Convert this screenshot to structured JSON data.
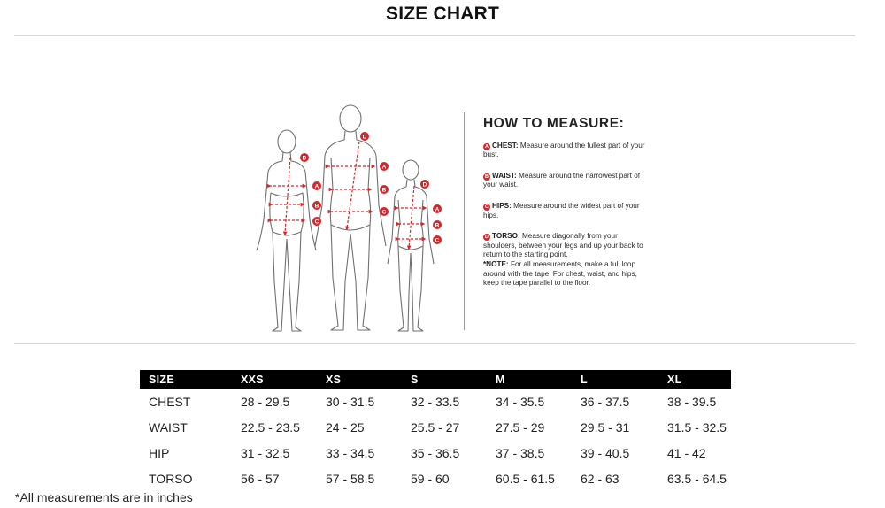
{
  "header": {
    "title": "SIZE CHART"
  },
  "how_to_measure": {
    "title": "HOW TO MEASURE:",
    "items": [
      {
        "badge": "A",
        "term": "CHEST:",
        "text": "Measure around the fullest part of your bust."
      },
      {
        "badge": "B",
        "term": "WAIST:",
        "text": "Measure around the narrowest part of your waist."
      },
      {
        "badge": "C",
        "term": "HIPS:",
        "text": "Measure around the widest part of your hips."
      },
      {
        "badge": "D",
        "term": "TORSO:",
        "text": "Measure diagonally from your shoulders, between your legs and up your back to return to the starting point."
      }
    ],
    "note": {
      "term": "*NOTE:",
      "text": "For all measurements, make a full loop around with the tape. For chest, waist, and hips, keep the tape parallel to the floor."
    }
  },
  "figure_labels": {
    "a": "A",
    "b": "B",
    "c": "C",
    "d": "D"
  },
  "table": {
    "headers": [
      "SIZE",
      "XXS",
      "XS",
      "S",
      "M",
      "L",
      "XL"
    ],
    "rows": [
      [
        "CHEST",
        "28 - 29.5",
        "30 - 31.5",
        "32 - 33.5",
        "34 - 35.5",
        "36 - 37.5",
        "38 - 39.5"
      ],
      [
        "WAIST",
        "22.5 - 23.5",
        "24 - 25",
        "25.5 - 27",
        "27.5 - 29",
        "29.5 - 31",
        "31.5 - 32.5"
      ],
      [
        "HIP",
        "31 - 32.5",
        "33 - 34.5",
        "35 - 36.5",
        "37 - 38.5",
        "39 - 40.5",
        "41 - 42"
      ],
      [
        "TORSO",
        "56 - 57",
        "57 - 58.5",
        "59 - 60",
        "60.5 - 61.5",
        "62 - 63",
        "63.5 - 64.5"
      ]
    ]
  },
  "footnote": "*All measurements are in inches",
  "colors": {
    "accent": "#d7262b",
    "header_bg": "#000000",
    "rule": "#d6d6d6"
  }
}
